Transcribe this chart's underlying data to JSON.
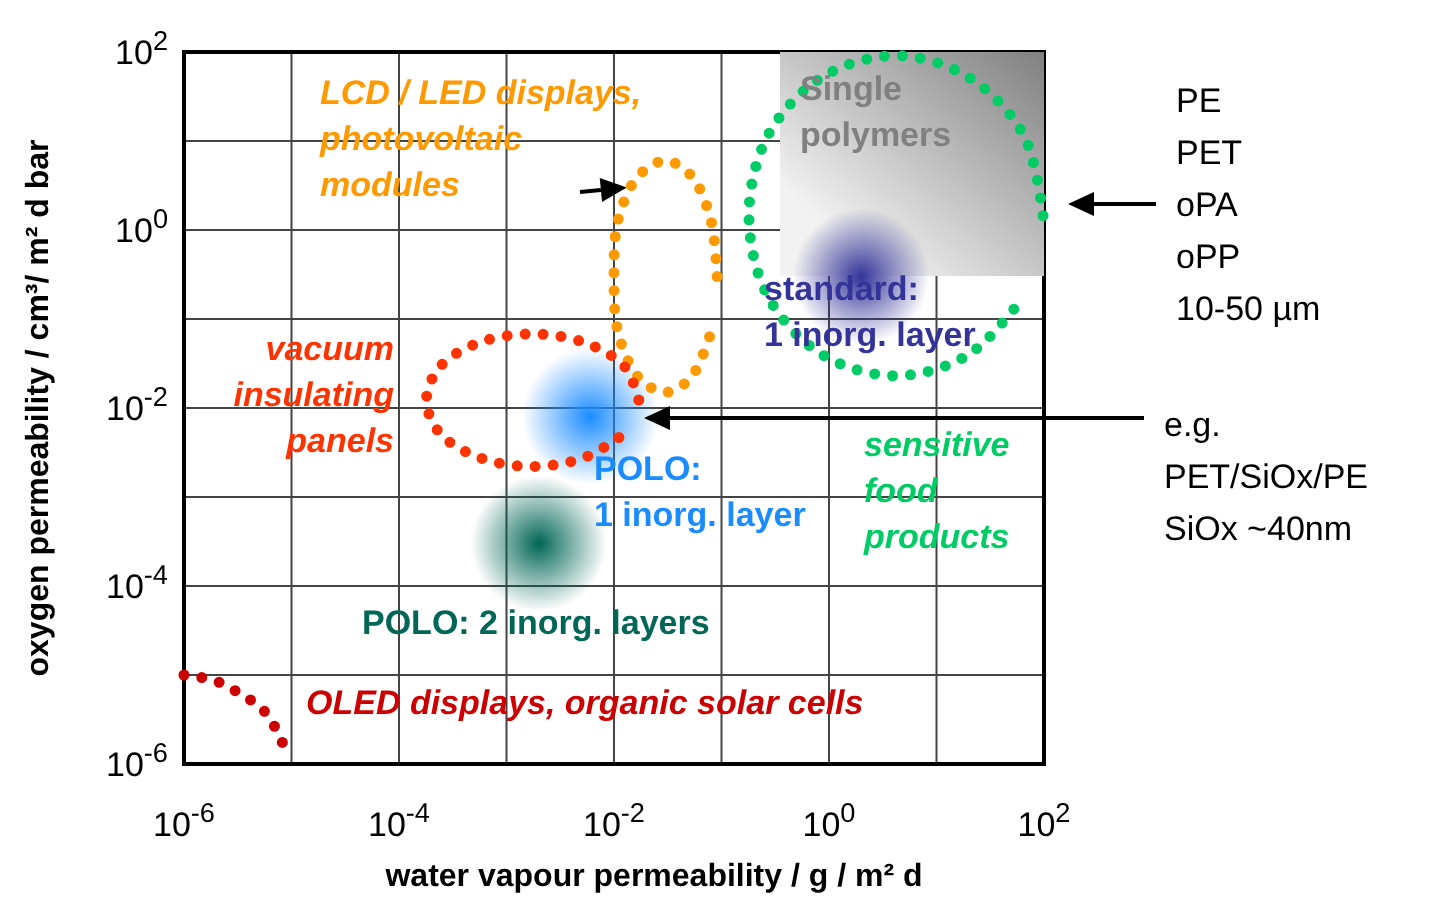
{
  "chart_data": {
    "type": "scatter",
    "log": "xy",
    "grid": true,
    "xlabel": "water vapour permeability / g / m² d",
    "ylabel": "oxygen permeability / cm³/ m² d bar",
    "xlim": [
      1e-06,
      100
    ],
    "ylim": [
      1e-06,
      100
    ],
    "xticks": [
      {
        "value": 1e-06,
        "label": "10$^{-6}$"
      },
      {
        "value": 1e-05,
        "label": null
      },
      {
        "value": 0.0001,
        "label": "10$^{-4}$"
      },
      {
        "value": 0.001,
        "label": null
      },
      {
        "value": 0.01,
        "label": "10$^{-2}$"
      },
      {
        "value": 0.1,
        "label": null
      },
      {
        "value": 1,
        "label": "10$^{0}$"
      },
      {
        "value": 10,
        "label": null
      },
      {
        "value": 100,
        "label": "10$^{2}$"
      }
    ],
    "yticks": [
      {
        "value": 1e-06,
        "label": "10$^{-6}$"
      },
      {
        "value": 1e-05,
        "label": null
      },
      {
        "value": 0.0001,
        "label": "10$^{-4}$"
      },
      {
        "value": 0.001,
        "label": null
      },
      {
        "value": 0.01,
        "label": "10$^{-2}$"
      },
      {
        "value": 0.1,
        "label": null
      },
      {
        "value": 1,
        "label": "10$^{0}$"
      },
      {
        "value": 10,
        "label": null
      },
      {
        "value": 100,
        "label": "10$^{2}$"
      }
    ],
    "series": [
      {
        "name": "standard:\n1 inorg. layer",
        "marker": "circle",
        "color": "#333399",
        "x": [
          2
        ],
        "values": [
          0.3
        ]
      },
      {
        "name": "POLO:\n1 inorg. layer",
        "marker": "circle",
        "color": "#1a8cff",
        "x": [
          0.006
        ],
        "values": [
          0.008
        ]
      },
      {
        "name": "POLO: 2 inorg. layers",
        "marker": "circle",
        "color": "#006655",
        "x": [
          0.002
        ],
        "values": [
          0.0003
        ]
      },
      {
        "name": "LCD / LED displays,\nphotovoltaic\nmodules",
        "type": "line",
        "line_style": "dotted",
        "color": "#ff9900",
        "x": [
          0.091,
          0.079,
          0.052,
          0.03,
          0.017,
          0.011,
          0.01,
          0.011,
          0.017,
          0.03,
          0.052,
          0.079
        ],
        "values": [
          0.3,
          1.35,
          4.1,
          6.0,
          4.1,
          1.35,
          0.3,
          0.068,
          0.022,
          0.015,
          0.022,
          0.068
        ]
      },
      {
        "name": "vacuum\ninsulating\npanels",
        "type": "line",
        "line_style": "dotted",
        "color": "#ff3300",
        "x": [
          0.017,
          0.0126,
          0.0054,
          0.0017,
          0.00055,
          0.00024,
          0.00018,
          0.00024,
          0.00055,
          0.0017,
          0.0054,
          0.0126
        ],
        "values": [
          0.0123,
          0.029,
          0.054,
          0.068,
          0.054,
          0.029,
          0.0123,
          0.0052,
          0.0028,
          0.0022,
          0.0028,
          0.0052
        ]
      },
      {
        "name": "sensitive\nfood\nproducts",
        "type": "line",
        "line_style": "dotted",
        "color": "#00cc66",
        "x": [
          98,
          65,
          20,
          4.2,
          0.86,
          0.27,
          0.18,
          0.27,
          0.86,
          4.2,
          20,
          65
        ],
        "values": [
          1.45,
          11.5,
          52,
          91,
          52,
          11.5,
          1.45,
          0.18,
          0.04,
          0.023,
          0.04,
          0.18
        ]
      },
      {
        "name": "OLED displays, organic solar cells",
        "type": "line",
        "line_style": "dotted",
        "color": "#cc0000",
        "x": [
          1e-06,
          1.9e-06,
          3.3e-06,
          5.4e-06,
          7.4e-06,
          9.3e-06
        ],
        "values": [
          1e-05,
          8.7e-06,
          6.2e-06,
          4.1e-06,
          2.3e-06,
          1.2e-06
        ]
      }
    ],
    "annotations": [
      "PE\nPET\noPA\noPP\n10-50 µm",
      "e.g.\nPET/SiOx/PE\nSiOx ~40nm",
      "Single\npolymers"
    ]
  }
}
